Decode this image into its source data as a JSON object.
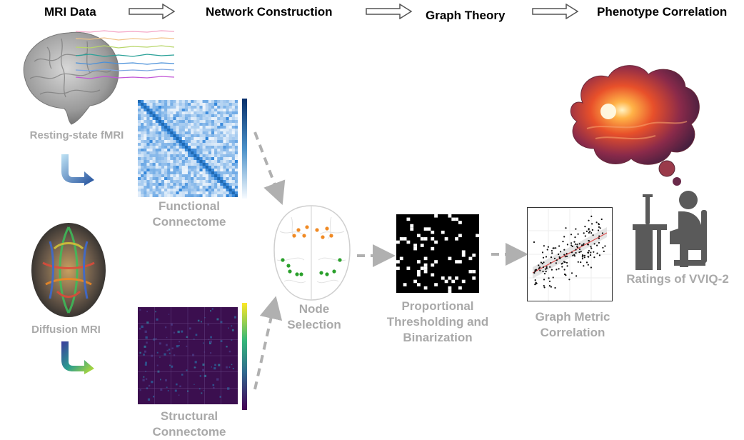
{
  "stages": {
    "mri_data": "MRI Data",
    "network_construction": "Network Construction",
    "graph_theory": "Graph Theory",
    "phenotype_correlation": "Phenotype Correlation"
  },
  "labels": {
    "resting_state": "Resting-state fMRI",
    "diffusion": "Diffusion MRI",
    "functional_connectome": [
      "Functional",
      "Connectome"
    ],
    "structural_connectome": [
      "Structural",
      "Connectome"
    ],
    "node_selection": [
      "Node",
      "Selection"
    ],
    "thresholding": [
      "Proportional",
      "Thresholding and",
      "Binarization"
    ],
    "graph_metric": [
      "Graph Metric",
      "Correlation"
    ],
    "ratings": "Ratings of VVIQ-2"
  },
  "colors": {
    "label_gray": "#a9a9a9",
    "arrow_gray": "#b0b0b0",
    "fc_blue": "#2b6cb0",
    "sc_purple": "#3b0f4f",
    "node_orange": "#f08a24",
    "node_green": "#2aa02b",
    "fit_red": "#e05050",
    "person_gray": "#5a5a5a"
  }
}
